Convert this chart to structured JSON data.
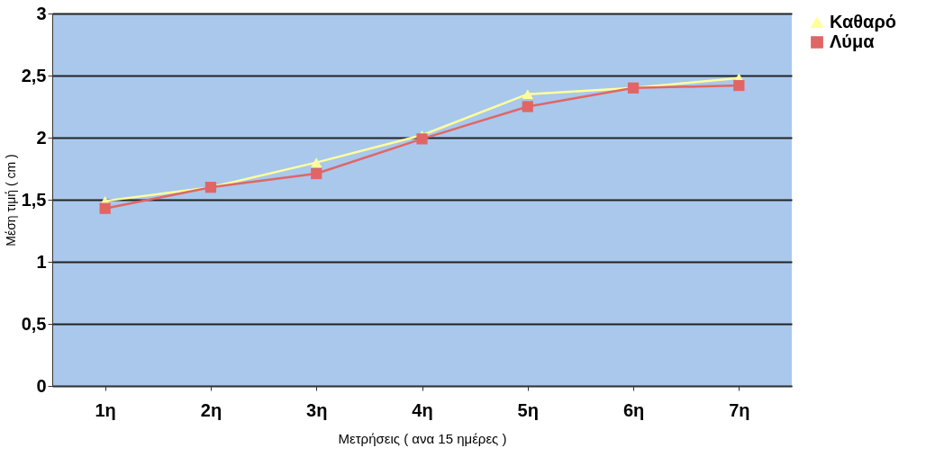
{
  "chart_data": {
    "type": "line",
    "xlabel": "Μετρήσεις ( ανα 15 ημέρες )",
    "ylabel": "Μέση τιμή ( cm )",
    "categories": [
      "1η",
      "2η",
      "3η",
      "4η",
      "5η",
      "6η",
      "7η"
    ],
    "series": [
      {
        "name": "Καθαρό",
        "color": "#ffff99",
        "marker": "triangle",
        "values": [
          1.49,
          1.6,
          1.8,
          2.02,
          2.35,
          2.4,
          2.48
        ]
      },
      {
        "name": "Λύμα",
        "color": "#e06666",
        "marker": "square",
        "values": [
          1.43,
          1.6,
          1.71,
          1.99,
          2.25,
          2.4,
          2.42
        ]
      }
    ],
    "ylim": [
      0,
      3
    ],
    "yticks": [
      0,
      {
        "value": 0.5,
        "label": "0,5"
      },
      1,
      {
        "value": 1.5,
        "label": "1,5"
      },
      2,
      {
        "value": 2.5,
        "label": "2,5"
      },
      3
    ],
    "grid": "y",
    "legend": "right",
    "line_style": "solid"
  }
}
